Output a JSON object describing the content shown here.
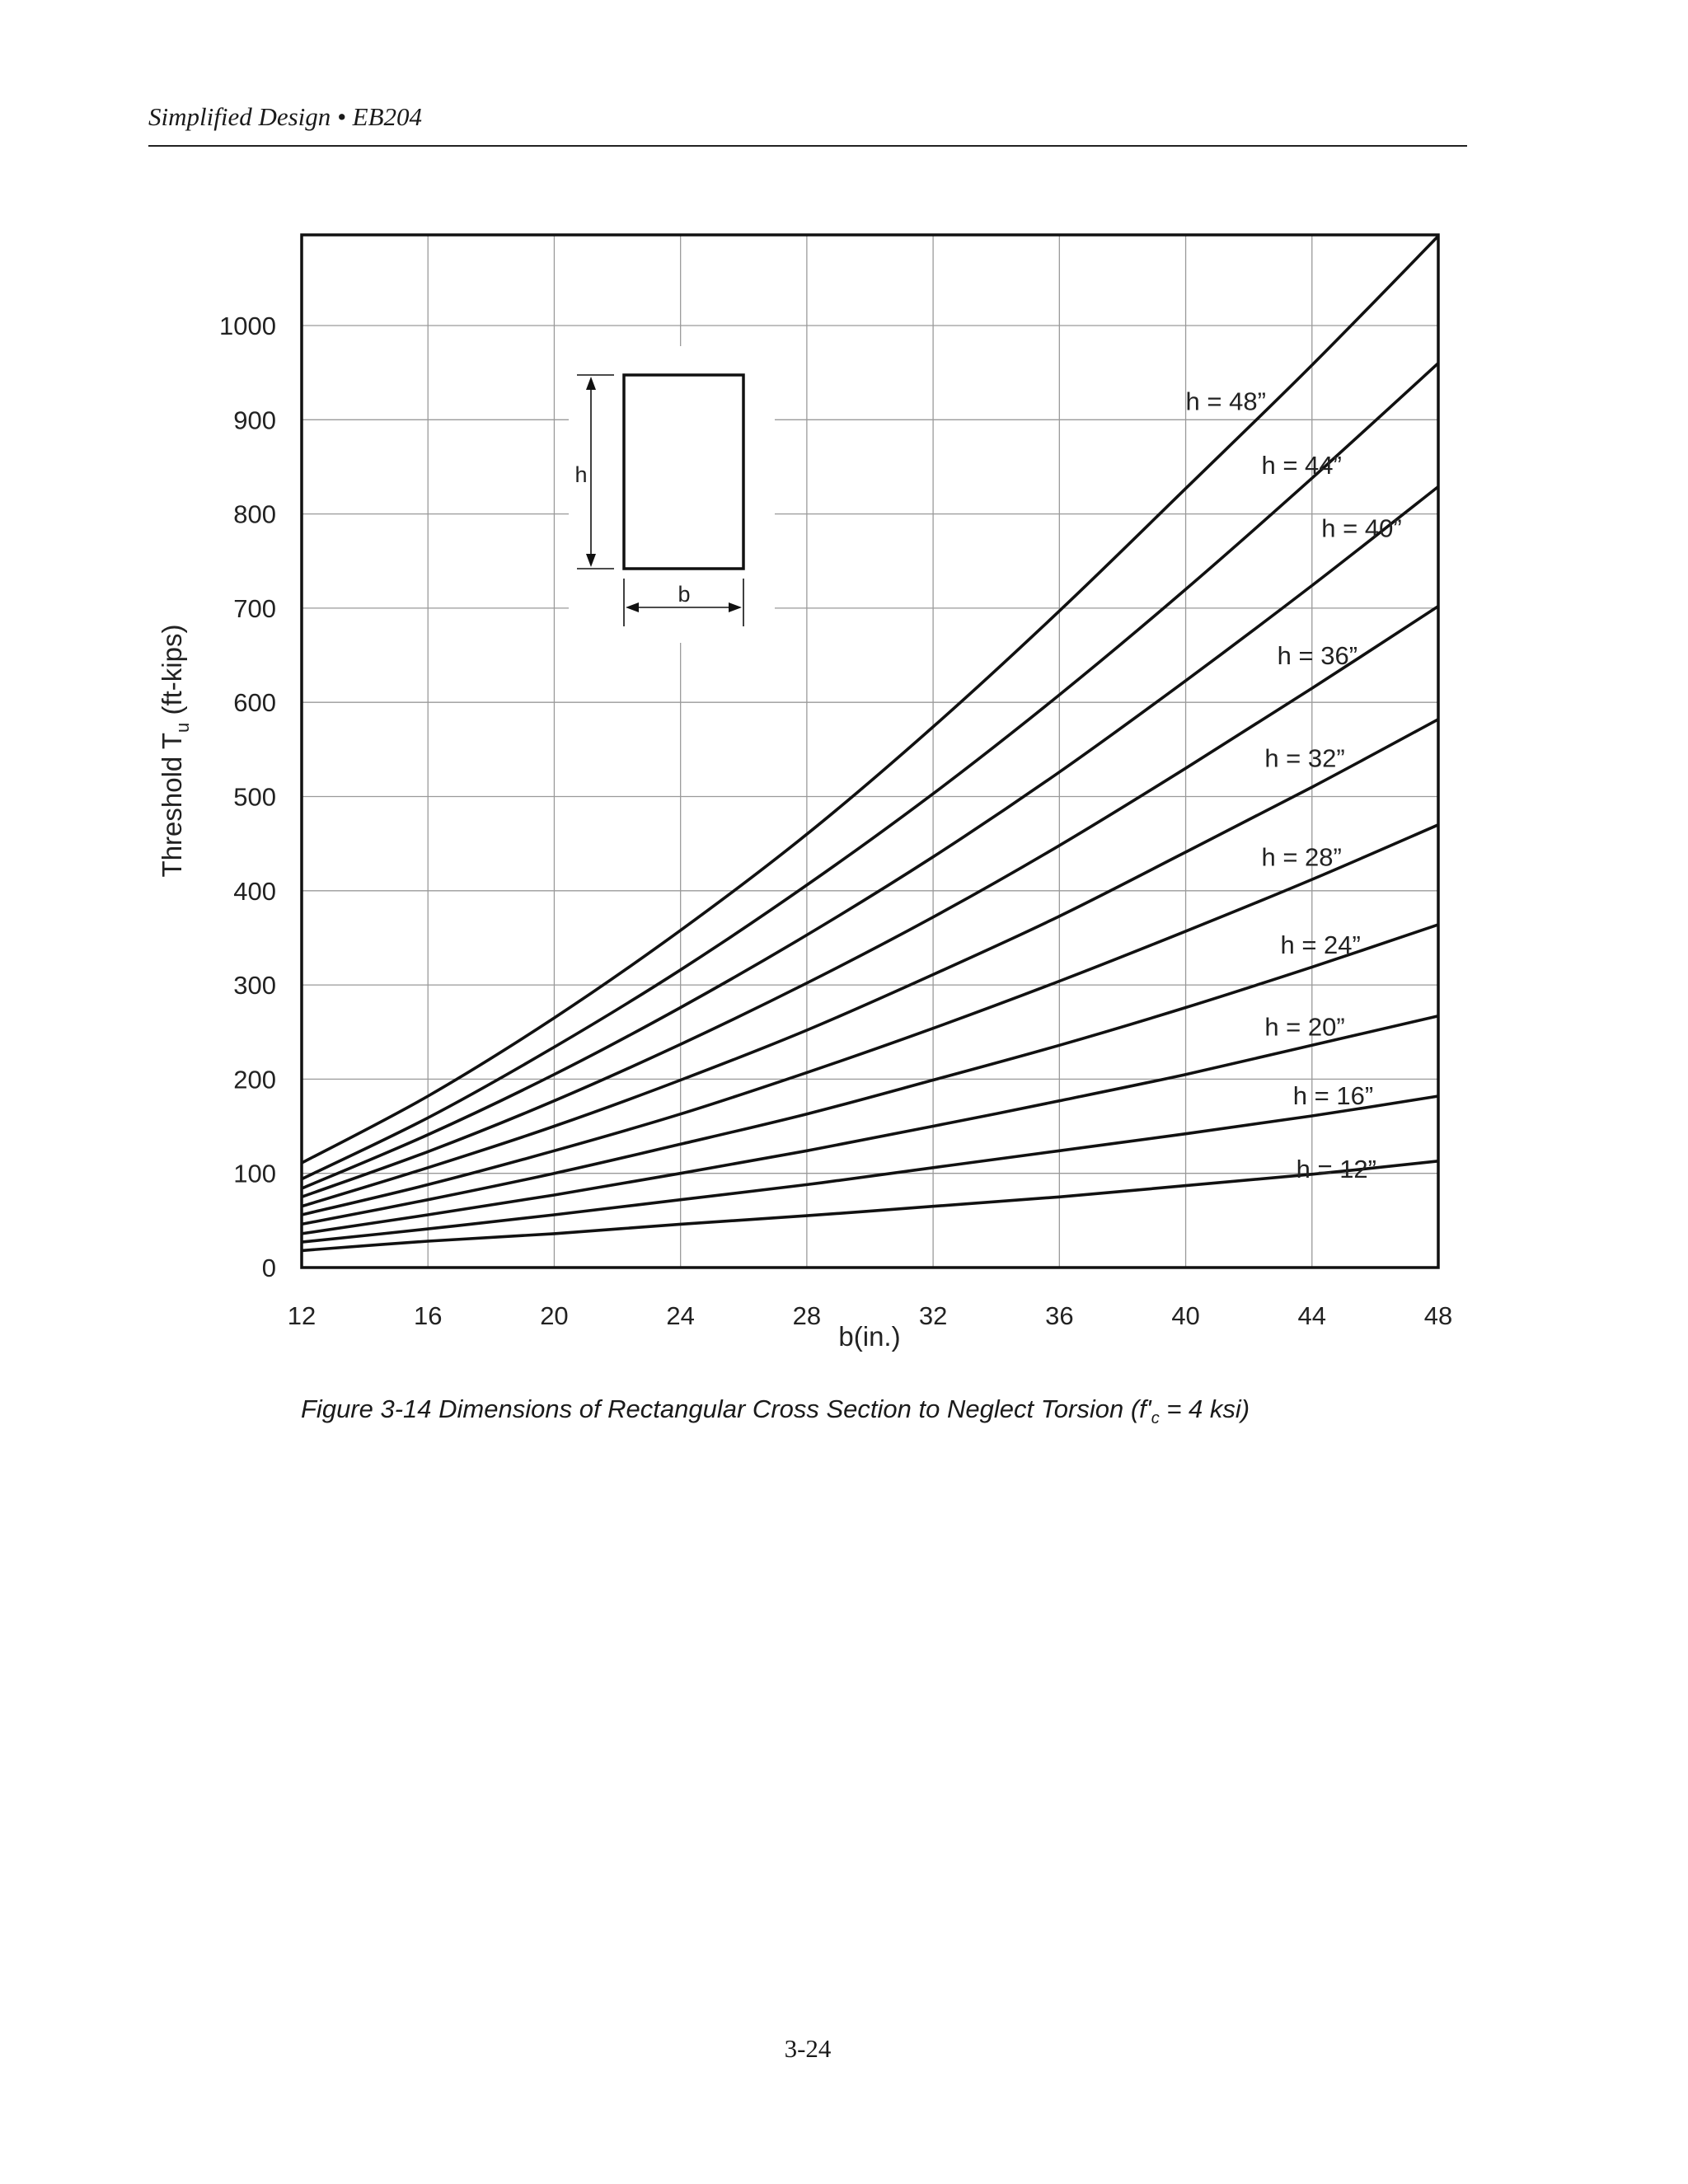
{
  "page": {
    "running_head": "Simplified Design • EB204",
    "caption_pre": "Figure 3-14 Dimensions of Rectangular Cross Section to Neglect Torsion (f'",
    "caption_sub": "c",
    "caption_post": " = 4 ksi)",
    "page_number": "3-24"
  },
  "chart_data": {
    "type": "line",
    "title": "",
    "xlabel": "b(in.)",
    "ylabel_main": "Threshold T",
    "ylabel_sub": "u",
    "ylabel_unit": " (ft-kips)",
    "xlim": [
      12,
      48
    ],
    "ylim": [
      0,
      1100
    ],
    "xticks": [
      12,
      16,
      20,
      24,
      28,
      32,
      36,
      40,
      44,
      48
    ],
    "yticks": [
      0,
      100,
      200,
      300,
      400,
      500,
      600,
      700,
      800,
      900,
      1000
    ],
    "grid": true,
    "inset": {
      "h_label": "h",
      "b_label": "b"
    },
    "x": [
      12,
      16,
      20,
      24,
      28,
      32,
      36,
      40,
      44,
      48
    ],
    "series": [
      {
        "name": "h = 12”",
        "values": [
          18,
          28,
          36,
          46,
          55,
          65,
          75,
          87,
          99,
          113
        ]
      },
      {
        "name": "h = 16”",
        "values": [
          27,
          41,
          56,
          72,
          88,
          106,
          124,
          142,
          161,
          182
        ]
      },
      {
        "name": "h = 20”",
        "values": [
          36,
          56,
          77,
          100,
          124,
          150,
          177,
          205,
          236,
          267
        ]
      },
      {
        "name": "h = 24”",
        "values": [
          46,
          72,
          100,
          131,
          163,
          199,
          236,
          276,
          319,
          364
        ]
      },
      {
        "name": "h = 28”",
        "values": [
          56,
          88,
          124,
          163,
          207,
          254,
          304,
          357,
          412,
          470
        ]
      },
      {
        "name": "h = 32”",
        "values": [
          65,
          106,
          150,
          199,
          252,
          311,
          373,
          441,
          510,
          582
        ]
      },
      {
        "name": "h = 36”",
        "values": [
          75,
          123,
          177,
          237,
          302,
          372,
          448,
          530,
          615,
          702
        ]
      },
      {
        "name": "h = 40”",
        "values": [
          84,
          141,
          205,
          276,
          353,
          436,
          526,
          623,
          724,
          829
        ]
      },
      {
        "name": "h = 44”",
        "values": [
          94,
          159,
          234,
          316,
          406,
          503,
          608,
          720,
          838,
          960
        ]
      },
      {
        "name": "h = 48”",
        "values": [
          111,
          182,
          265,
          358,
          460,
          574,
          697,
          827,
          958,
          1095
        ]
      }
    ],
    "label_points": [
      {
        "x": 43.5,
        "y": 105
      },
      {
        "x": 43.4,
        "y": 183
      },
      {
        "x": 42.5,
        "y": 256
      },
      {
        "x": 43.0,
        "y": 343
      },
      {
        "x": 42.4,
        "y": 436
      },
      {
        "x": 42.5,
        "y": 541
      },
      {
        "x": 42.9,
        "y": 650
      },
      {
        "x": 44.3,
        "y": 785
      },
      {
        "x": 42.4,
        "y": 852
      },
      {
        "x": 40.0,
        "y": 920
      }
    ]
  }
}
